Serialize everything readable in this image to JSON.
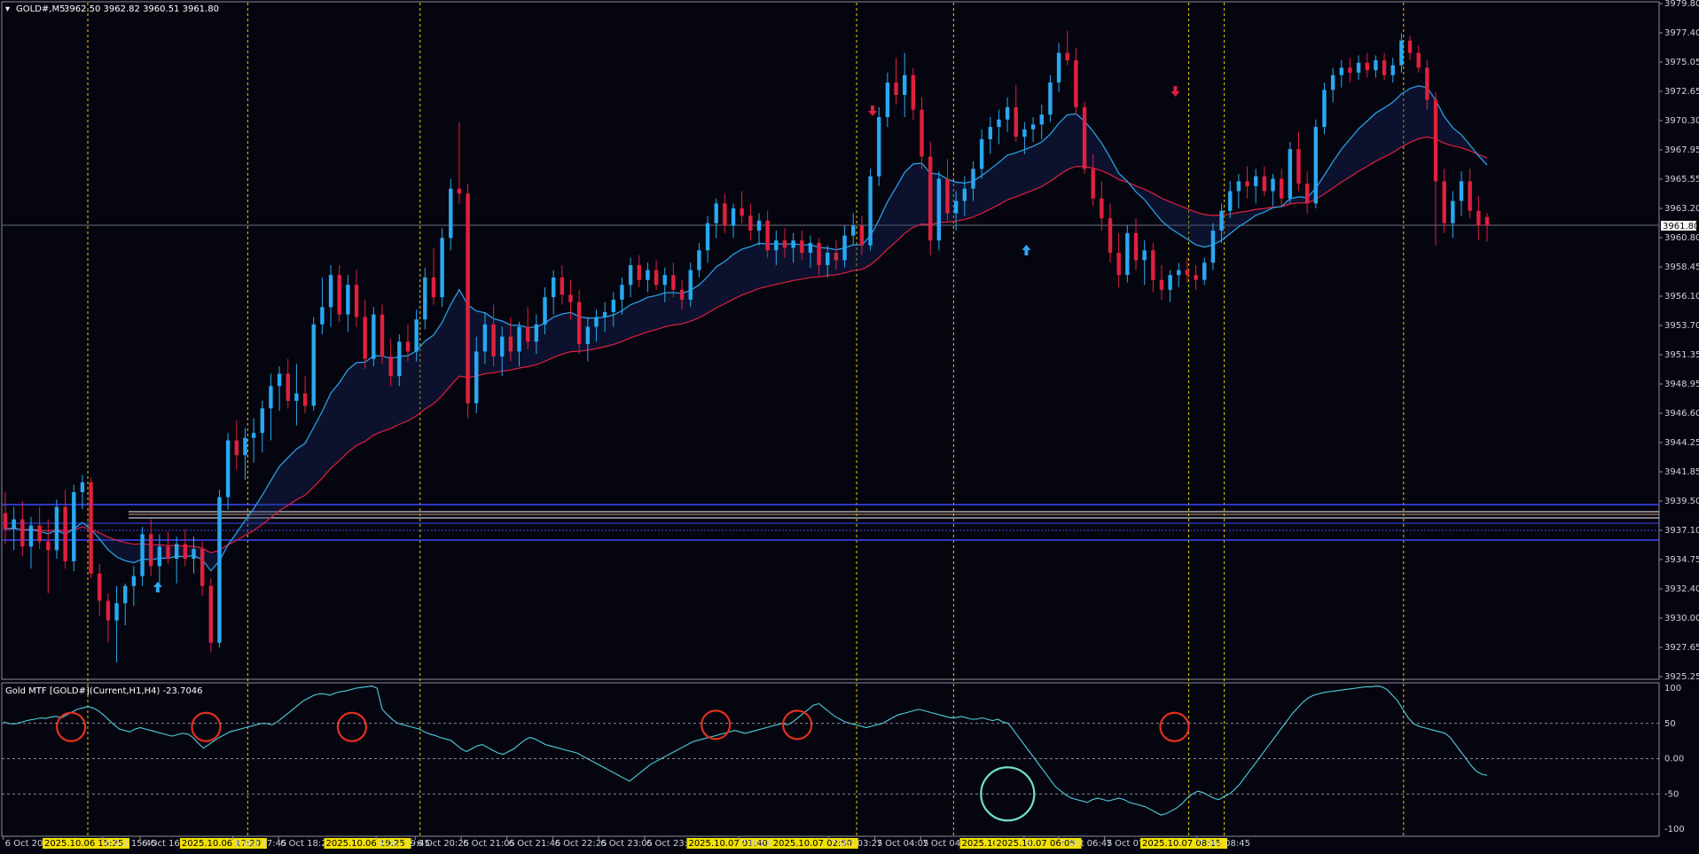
{
  "header": {
    "symbol": "GOLD#,M5",
    "ohlc": "3962.50 3962.82 3960.51 3961.80"
  },
  "indicator_header": "Gold MTF [GOLD#](Current,H1,H4) -23.7046",
  "current_price_label": "3961.80",
  "colors": {
    "bull": "#2aa8f2",
    "bear": "#e0203f",
    "fast_ma": "#2aa8f2",
    "slow_ma": "#e0203f",
    "osc": "#4fd0e0",
    "vline": "#e8d000",
    "circle": "#e03020",
    "circle_alt": "#6fe0d0",
    "hline": "#3b4aff",
    "hline2": "#c8c8d0"
  },
  "price_axis": [
    "3979.80",
    "3977.40",
    "3975.05",
    "3972.65",
    "3970.30",
    "3967.95",
    "3965.55",
    "3963.20",
    "3960.80",
    "3958.45",
    "3956.10",
    "3953.70",
    "3951.35",
    "3948.95",
    "3946.60",
    "3944.25",
    "3941.85",
    "3939.50",
    "3937.10",
    "3934.75",
    "3932.40",
    "3930.00",
    "3927.65",
    "3925.25"
  ],
  "osc_axis": [
    "100",
    "50",
    "0.00",
    "-50",
    "-100"
  ],
  "time_axis": [
    {
      "t": "6 Oct 2025",
      "hl": false
    },
    {
      "t": "2025.10.06 15:25",
      "hl": true
    },
    {
      "t": "6 Oct 15:45",
      "hl": false
    },
    {
      "t": "6 Oct 16:25",
      "hl": false
    },
    {
      "t": "2025.10.06 17:20",
      "hl": true
    },
    {
      "t": "6 Oct 17:45",
      "hl": false
    },
    {
      "t": "6 Oct 18:25",
      "hl": false
    },
    {
      "t": "2025.10.06 19:25",
      "hl": true
    },
    {
      "t": "6 Oct 19:45",
      "hl": false
    },
    {
      "t": "6 Oct 20:25",
      "hl": false
    },
    {
      "t": "6 Oct 21:05",
      "hl": false
    },
    {
      "t": "6 Oct 21:45",
      "hl": false
    },
    {
      "t": "6 Oct 22:25",
      "hl": false
    },
    {
      "t": "6 Oct 23:05",
      "hl": false
    },
    {
      "t": "6 Oct 23:45",
      "hl": false
    },
    {
      "t": "2025.10.07 01:40",
      "hl": true
    },
    {
      "t": "7 Oct 0",
      "hl": false
    },
    {
      "t": "2025.10.07 02:50",
      "hl": true
    },
    {
      "t": "7 Oct 03:25",
      "hl": false
    },
    {
      "t": "7 Oct 04:05",
      "hl": false
    },
    {
      "t": "7 Oct 04:45",
      "hl": false
    },
    {
      "t": "2025.10.",
      "hl": true
    },
    {
      "t": "2025.10.07 06:05",
      "hl": true
    },
    {
      "t": "5",
      "hl": false
    },
    {
      "t": "7 Oct 06:45",
      "hl": false
    },
    {
      "t": "7 Oct 07:",
      "hl": false
    },
    {
      "t": "2025.10.07 08:15",
      "hl": true
    },
    {
      "t": "7 Oct 08:45",
      "hl": false
    }
  ],
  "chart_data": {
    "type": "candlestick",
    "symbol": "GOLD#",
    "timeframe": "M5",
    "ylim": [
      3925.25,
      3979.8
    ],
    "osc_ylim": [
      -100,
      100
    ],
    "candles": [
      [
        3938.5,
        3940.2,
        3936.0,
        3937.2
      ],
      [
        3937.2,
        3939.0,
        3935.5,
        3938.0
      ],
      [
        3938.0,
        3939.5,
        3935.0,
        3935.8
      ],
      [
        3935.8,
        3938.2,
        3934.0,
        3937.5
      ],
      [
        3937.5,
        3939.0,
        3935.6,
        3936.2
      ],
      [
        3936.2,
        3938.0,
        3932.0,
        3935.5
      ],
      [
        3935.5,
        3939.6,
        3934.8,
        3939.0
      ],
      [
        3939.0,
        3940.4,
        3934.0,
        3934.6
      ],
      [
        3934.6,
        3940.8,
        3933.8,
        3940.2
      ],
      [
        3940.2,
        3941.6,
        3938.8,
        3941.0
      ],
      [
        3941.0,
        3941.4,
        3933.2,
        3933.6
      ],
      [
        3933.6,
        3934.4,
        3930.2,
        3931.4
      ],
      [
        3931.4,
        3932.0,
        3928.0,
        3929.8
      ],
      [
        3929.8,
        3932.6,
        3926.4,
        3931.2
      ],
      [
        3931.2,
        3932.8,
        3929.4,
        3932.6
      ],
      [
        3932.6,
        3934.2,
        3931.0,
        3933.4
      ],
      [
        3933.4,
        3937.4,
        3932.6,
        3936.8
      ],
      [
        3936.8,
        3938.0,
        3933.4,
        3934.2
      ],
      [
        3934.2,
        3936.8,
        3932.6,
        3935.8
      ],
      [
        3935.8,
        3937.0,
        3934.4,
        3934.8
      ],
      [
        3934.8,
        3936.6,
        3932.8,
        3936.0
      ],
      [
        3936.0,
        3937.2,
        3934.2,
        3934.8
      ],
      [
        3934.8,
        3936.6,
        3933.6,
        3935.6
      ],
      [
        3935.6,
        3936.2,
        3931.8,
        3932.6
      ],
      [
        3932.6,
        3933.2,
        3927.2,
        3928.0
      ],
      [
        3928.0,
        3940.4,
        3927.6,
        3939.8
      ],
      [
        3939.8,
        3945.0,
        3938.8,
        3944.4
      ],
      [
        3944.4,
        3946.0,
        3942.0,
        3943.2
      ],
      [
        3943.2,
        3945.4,
        3941.2,
        3944.6
      ],
      [
        3944.6,
        3946.2,
        3942.6,
        3945.0
      ],
      [
        3945.0,
        3947.6,
        3943.4,
        3947.0
      ],
      [
        3947.0,
        3949.8,
        3944.4,
        3948.8
      ],
      [
        3948.8,
        3950.4,
        3946.8,
        3949.8
      ],
      [
        3949.8,
        3951.0,
        3947.0,
        3947.6
      ],
      [
        3947.6,
        3950.6,
        3945.6,
        3948.2
      ],
      [
        3948.2,
        3949.6,
        3946.6,
        3947.2
      ],
      [
        3947.2,
        3954.4,
        3946.8,
        3953.8
      ],
      [
        3953.8,
        3957.6,
        3953.0,
        3955.2
      ],
      [
        3955.2,
        3958.6,
        3953.6,
        3957.8
      ],
      [
        3957.8,
        3958.6,
        3954.0,
        3954.6
      ],
      [
        3954.6,
        3957.8,
        3953.2,
        3957.0
      ],
      [
        3957.0,
        3958.2,
        3953.6,
        3954.4
      ],
      [
        3954.4,
        3955.8,
        3950.2,
        3951.0
      ],
      [
        3951.0,
        3955.2,
        3950.4,
        3954.6
      ],
      [
        3954.6,
        3955.4,
        3950.6,
        3951.2
      ],
      [
        3951.2,
        3952.6,
        3948.8,
        3949.6
      ],
      [
        3949.6,
        3953.0,
        3948.8,
        3952.4
      ],
      [
        3952.4,
        3953.8,
        3950.8,
        3951.6
      ],
      [
        3951.6,
        3955.0,
        3950.8,
        3954.2
      ],
      [
        3954.2,
        3958.4,
        3953.4,
        3957.6
      ],
      [
        3957.6,
        3960.0,
        3955.4,
        3956.0
      ],
      [
        3956.0,
        3961.6,
        3955.2,
        3960.8
      ],
      [
        3960.8,
        3965.6,
        3959.8,
        3964.8
      ],
      [
        3964.8,
        3970.2,
        3963.6,
        3964.4
      ],
      [
        3964.4,
        3965.2,
        3946.2,
        3947.4
      ],
      [
        3947.4,
        3952.8,
        3946.6,
        3951.6
      ],
      [
        3951.6,
        3954.8,
        3950.6,
        3953.8
      ],
      [
        3953.8,
        3955.4,
        3950.4,
        3951.2
      ],
      [
        3951.2,
        3953.6,
        3949.6,
        3952.8
      ],
      [
        3952.8,
        3954.4,
        3950.8,
        3951.6
      ],
      [
        3951.6,
        3954.0,
        3950.4,
        3953.6
      ],
      [
        3953.6,
        3955.2,
        3951.8,
        3952.4
      ],
      [
        3952.4,
        3954.6,
        3951.4,
        3953.8
      ],
      [
        3953.8,
        3956.8,
        3953.0,
        3956.0
      ],
      [
        3956.0,
        3958.2,
        3954.6,
        3957.6
      ],
      [
        3957.6,
        3958.6,
        3955.4,
        3956.2
      ],
      [
        3956.2,
        3957.4,
        3954.2,
        3955.6
      ],
      [
        3955.6,
        3956.6,
        3951.4,
        3952.2
      ],
      [
        3952.2,
        3954.4,
        3950.8,
        3953.6
      ],
      [
        3953.6,
        3955.0,
        3952.4,
        3954.4
      ],
      [
        3954.4,
        3955.6,
        3953.2,
        3954.8
      ],
      [
        3954.8,
        3956.4,
        3953.6,
        3955.8
      ],
      [
        3955.8,
        3957.6,
        3954.6,
        3957.0
      ],
      [
        3957.0,
        3959.2,
        3956.0,
        3958.6
      ],
      [
        3958.6,
        3959.4,
        3956.8,
        3957.4
      ],
      [
        3957.4,
        3958.8,
        3956.4,
        3958.2
      ],
      [
        3958.2,
        3959.0,
        3956.6,
        3957.0
      ],
      [
        3957.0,
        3958.4,
        3955.6,
        3957.8
      ],
      [
        3957.8,
        3958.8,
        3956.0,
        3956.6
      ],
      [
        3956.6,
        3957.4,
        3955.0,
        3955.8
      ],
      [
        3955.8,
        3958.8,
        3955.2,
        3958.2
      ],
      [
        3958.2,
        3960.4,
        3957.6,
        3959.8
      ],
      [
        3959.8,
        3962.6,
        3958.8,
        3962.0
      ],
      [
        3962.0,
        3964.0,
        3960.8,
        3963.6
      ],
      [
        3963.6,
        3964.4,
        3961.2,
        3961.8
      ],
      [
        3961.8,
        3963.6,
        3960.8,
        3963.2
      ],
      [
        3963.2,
        3964.6,
        3962.0,
        3962.6
      ],
      [
        3962.6,
        3963.6,
        3960.6,
        3961.4
      ],
      [
        3961.4,
        3962.8,
        3960.2,
        3962.2
      ],
      [
        3962.2,
        3963.0,
        3959.2,
        3959.8
      ],
      [
        3959.8,
        3961.4,
        3958.6,
        3960.6
      ],
      [
        3960.6,
        3961.6,
        3959.2,
        3960.0
      ],
      [
        3960.0,
        3961.2,
        3958.8,
        3960.6
      ],
      [
        3960.6,
        3961.4,
        3959.0,
        3959.6
      ],
      [
        3959.6,
        3961.0,
        3958.4,
        3960.4
      ],
      [
        3960.4,
        3960.8,
        3957.8,
        3958.6
      ],
      [
        3958.6,
        3960.2,
        3957.6,
        3959.6
      ],
      [
        3959.6,
        3960.6,
        3958.2,
        3959.0
      ],
      [
        3959.0,
        3961.8,
        3958.4,
        3961.0
      ],
      [
        3961.0,
        3962.8,
        3960.2,
        3961.8
      ],
      [
        3961.8,
        3962.6,
        3959.4,
        3960.2
      ],
      [
        3960.2,
        3966.4,
        3959.8,
        3965.8
      ],
      [
        3965.8,
        3971.4,
        3965.0,
        3970.6
      ],
      [
        3970.6,
        3974.2,
        3969.8,
        3973.4
      ],
      [
        3973.4,
        3975.4,
        3971.6,
        3972.4
      ],
      [
        3972.4,
        3975.8,
        3970.6,
        3974.0
      ],
      [
        3974.0,
        3974.6,
        3970.4,
        3971.2
      ],
      [
        3971.2,
        3972.2,
        3966.4,
        3967.4
      ],
      [
        3967.4,
        3968.6,
        3959.4,
        3960.6
      ],
      [
        3960.6,
        3966.2,
        3959.8,
        3965.6
      ],
      [
        3965.6,
        3967.2,
        3962.2,
        3962.8
      ],
      [
        3962.8,
        3964.6,
        3961.4,
        3963.8
      ],
      [
        3963.8,
        3965.8,
        3962.6,
        3964.8
      ],
      [
        3964.8,
        3967.0,
        3963.8,
        3966.4
      ],
      [
        3966.4,
        3969.6,
        3965.6,
        3968.8
      ],
      [
        3968.8,
        3970.6,
        3967.6,
        3969.8
      ],
      [
        3969.8,
        3971.2,
        3968.4,
        3970.4
      ],
      [
        3970.4,
        3972.2,
        3969.4,
        3971.4
      ],
      [
        3971.4,
        3973.2,
        3968.6,
        3969.0
      ],
      [
        3969.0,
        3970.2,
        3967.6,
        3969.6
      ],
      [
        3969.6,
        3970.6,
        3968.6,
        3970.0
      ],
      [
        3970.0,
        3971.6,
        3968.8,
        3970.8
      ],
      [
        3970.8,
        3974.0,
        3970.2,
        3973.4
      ],
      [
        3973.4,
        3976.6,
        3972.6,
        3975.8
      ],
      [
        3975.8,
        3977.6,
        3974.8,
        3975.2
      ],
      [
        3975.2,
        3976.2,
        3970.8,
        3971.4
      ],
      [
        3971.4,
        3971.8,
        3966.0,
        3966.4
      ],
      [
        3966.4,
        3967.6,
        3963.4,
        3964.0
      ],
      [
        3964.0,
        3965.4,
        3961.4,
        3962.4
      ],
      [
        3962.4,
        3963.6,
        3958.8,
        3959.6
      ],
      [
        3959.6,
        3961.2,
        3956.8,
        3957.8
      ],
      [
        3957.8,
        3961.8,
        3957.2,
        3961.2
      ],
      [
        3961.2,
        3962.4,
        3958.2,
        3959.0
      ],
      [
        3959.0,
        3960.6,
        3957.0,
        3959.8
      ],
      [
        3959.8,
        3960.4,
        3956.4,
        3957.4
      ],
      [
        3957.4,
        3958.6,
        3955.8,
        3956.6
      ],
      [
        3956.6,
        3958.2,
        3955.6,
        3957.8
      ],
      [
        3957.8,
        3958.8,
        3956.8,
        3958.2
      ],
      [
        3958.2,
        3959.2,
        3957.2,
        3957.8
      ],
      [
        3957.8,
        3958.6,
        3956.6,
        3957.4
      ],
      [
        3957.4,
        3959.2,
        3957.0,
        3958.8
      ],
      [
        3958.8,
        3962.0,
        3958.2,
        3961.4
      ],
      [
        3961.4,
        3963.6,
        3960.4,
        3963.0
      ],
      [
        3963.0,
        3965.4,
        3962.4,
        3964.6
      ],
      [
        3964.6,
        3966.0,
        3963.2,
        3965.4
      ],
      [
        3965.4,
        3966.6,
        3964.0,
        3965.0
      ],
      [
        3965.0,
        3966.4,
        3963.6,
        3965.8
      ],
      [
        3965.8,
        3966.6,
        3964.2,
        3964.6
      ],
      [
        3964.6,
        3966.0,
        3963.4,
        3965.6
      ],
      [
        3965.6,
        3966.4,
        3963.4,
        3964.0
      ],
      [
        3964.0,
        3968.6,
        3963.6,
        3968.0
      ],
      [
        3968.0,
        3969.4,
        3964.6,
        3965.2
      ],
      [
        3965.2,
        3966.2,
        3962.8,
        3963.6
      ],
      [
        3963.6,
        3970.4,
        3963.2,
        3969.8
      ],
      [
        3969.8,
        3973.4,
        3969.2,
        3972.8
      ],
      [
        3972.8,
        3974.6,
        3971.8,
        3974.0
      ],
      [
        3974.0,
        3975.2,
        3973.0,
        3974.6
      ],
      [
        3974.6,
        3975.4,
        3973.4,
        3974.2
      ],
      [
        3974.2,
        3975.6,
        3973.6,
        3975.0
      ],
      [
        3975.0,
        3975.8,
        3973.8,
        3974.4
      ],
      [
        3974.4,
        3975.6,
        3973.8,
        3975.2
      ],
      [
        3975.2,
        3975.8,
        3973.6,
        3974.0
      ],
      [
        3974.0,
        3975.4,
        3973.4,
        3974.8
      ],
      [
        3974.8,
        3977.4,
        3974.2,
        3976.8
      ],
      [
        3976.8,
        3977.2,
        3975.2,
        3975.8
      ],
      [
        3975.8,
        3976.4,
        3974.2,
        3974.6
      ],
      [
        3974.6,
        3975.2,
        3971.2,
        3972.0
      ],
      [
        3972.0,
        3972.6,
        3960.2,
        3965.4
      ],
      [
        3965.4,
        3966.4,
        3961.2,
        3962.0
      ],
      [
        3962.0,
        3964.6,
        3960.8,
        3963.8
      ],
      [
        3963.8,
        3966.2,
        3962.6,
        3965.4
      ],
      [
        3965.4,
        3966.4,
        3962.4,
        3963.0
      ],
      [
        3963.0,
        3964.2,
        3960.6,
        3961.8
      ],
      [
        3962.5,
        3962.82,
        3960.51,
        3961.8
      ]
    ],
    "oscillator": [
      52,
      50,
      49,
      51,
      53,
      55,
      56,
      58,
      57,
      59,
      60,
      58,
      62,
      66,
      70,
      72,
      74,
      72,
      68,
      62,
      55,
      48,
      42,
      40,
      38,
      42,
      44,
      42,
      40,
      38,
      36,
      34,
      32,
      34,
      36,
      35,
      30,
      22,
      15,
      20,
      25,
      30,
      34,
      38,
      40,
      42,
      44,
      46,
      48,
      50,
      50,
      48,
      52,
      58,
      64,
      70,
      76,
      82,
      86,
      90,
      92,
      92,
      90,
      93,
      95,
      96,
      98,
      100,
      101,
      102,
      103,
      100,
      70,
      62,
      55,
      50,
      48,
      46,
      44,
      42,
      38,
      35,
      33,
      30,
      28,
      26,
      20,
      14,
      10,
      14,
      18,
      20,
      16,
      12,
      8,
      6,
      10,
      14,
      20,
      26,
      30,
      28,
      24,
      20,
      18,
      16,
      14,
      12,
      10,
      8,
      4,
      0,
      -4,
      -8,
      -12,
      -16,
      -20,
      -24,
      -28,
      -32,
      -26,
      -20,
      -14,
      -8,
      -4,
      0,
      4,
      8,
      12,
      16,
      20,
      24,
      26,
      28,
      30,
      32,
      34,
      36,
      38,
      40,
      38,
      36,
      38,
      40,
      42,
      44,
      46,
      48,
      50,
      48,
      52,
      58,
      64,
      70,
      76,
      78,
      72,
      66,
      60,
      56,
      52,
      50,
      48,
      46,
      44,
      46,
      48,
      50,
      54,
      58,
      62,
      64,
      66,
      68,
      70,
      68,
      66,
      64,
      62,
      60,
      58,
      58,
      60,
      58,
      56,
      56,
      58,
      56,
      54,
      56,
      52,
      50,
      40,
      30,
      20,
      10,
      0,
      -10,
      -20,
      -30,
      -40,
      -46,
      -52,
      -56,
      -58,
      -60,
      -62,
      -58,
      -56,
      -58,
      -60,
      -58,
      -56,
      -58,
      -62,
      -64,
      -66,
      -68,
      -72,
      -76,
      -80,
      -78,
      -74,
      -70,
      -64,
      -56,
      -50,
      -46,
      -48,
      -52,
      -56,
      -58,
      -54,
      -50,
      -44,
      -36,
      -26,
      -16,
      -6,
      4,
      14,
      24,
      34,
      44,
      54,
      64,
      72,
      80,
      86,
      90,
      92,
      94,
      95,
      96,
      97,
      98,
      99,
      100,
      101,
      102,
      102,
      103,
      102,
      98,
      90,
      82,
      70,
      58,
      50,
      46,
      44,
      42,
      40,
      38,
      36,
      30,
      20,
      10,
      0,
      -10,
      -18,
      -22,
      -23.7
    ]
  }
}
